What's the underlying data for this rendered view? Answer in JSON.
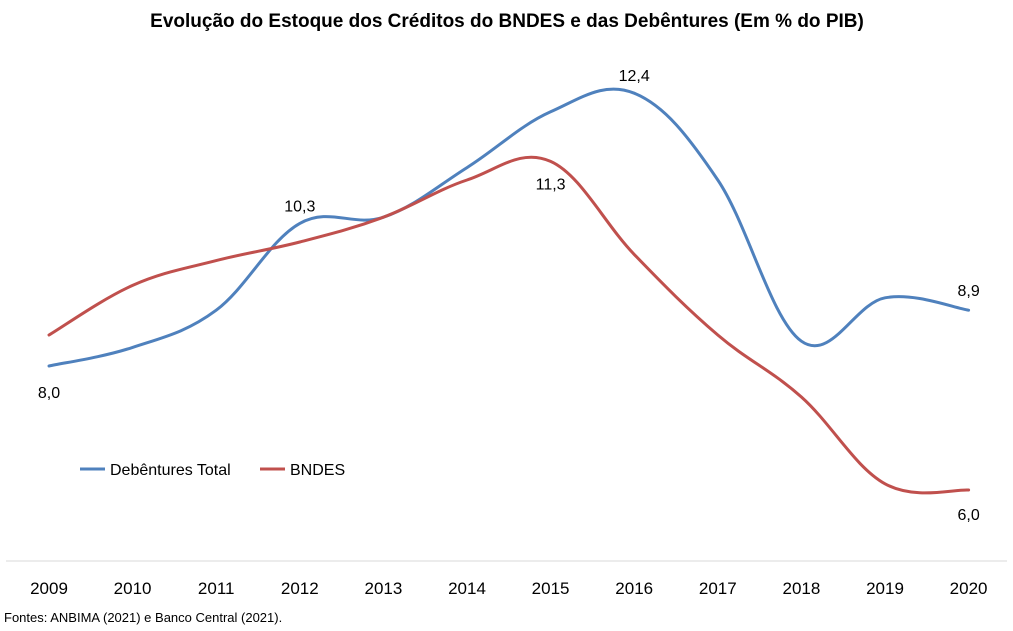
{
  "chart_data": {
    "type": "line",
    "title": "Evolução do Estoque dos Créditos do BNDES e das Debêntures (Em % do PIB)",
    "categories": [
      "2009",
      "2010",
      "2011",
      "2012",
      "2013",
      "2014",
      "2015",
      "2016",
      "2017",
      "2018",
      "2019",
      "2020"
    ],
    "series": [
      {
        "name": "Debêntures Total",
        "color": "#4f81bd",
        "values": [
          8.0,
          8.3,
          8.9,
          10.3,
          10.4,
          11.2,
          12.1,
          12.4,
          11.0,
          8.4,
          9.1,
          8.9
        ],
        "labels": {
          "0": "8,0",
          "3": "10,3",
          "7": "12,4",
          "11": "8,9"
        }
      },
      {
        "name": "BNDES",
        "color": "#c0504d",
        "values": [
          8.5,
          9.3,
          9.7,
          10.0,
          10.4,
          11.0,
          11.3,
          9.8,
          8.5,
          7.5,
          6.1,
          6.0
        ],
        "labels": {
          "6": "11,3",
          "11": "6,0"
        }
      }
    ],
    "legend": "left",
    "grid": false
  },
  "source": "Fontes: ANBIMA (2021) e Banco Central (2021)."
}
